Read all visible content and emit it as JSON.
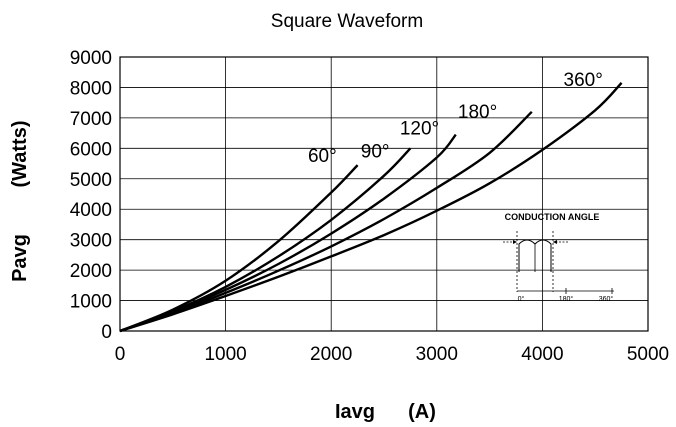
{
  "chart_data": {
    "type": "line",
    "title": "Square Waveform",
    "xlabel": "Iavg",
    "xunit": "(A)",
    "ylabel": "Pavg",
    "yunit": "(Watts)",
    "xlim": [
      0,
      5000
    ],
    "ylim": [
      0,
      9000
    ],
    "xticks": [
      0,
      1000,
      2000,
      3000,
      4000,
      5000
    ],
    "yticks": [
      0,
      1000,
      2000,
      3000,
      4000,
      5000,
      6000,
      7000,
      8000,
      9000
    ],
    "grid": true,
    "series": [
      {
        "name": "60°",
        "label_at": [
          1780,
          5550
        ],
        "x": [
          0,
          500,
          1000,
          1500,
          2000,
          2250
        ],
        "y": [
          0,
          700,
          1650,
          2950,
          4550,
          5450
        ]
      },
      {
        "name": "90°",
        "label_at": [
          2280,
          5700
        ],
        "x": [
          0,
          500,
          1000,
          1500,
          2000,
          2500,
          2750
        ],
        "y": [
          0,
          650,
          1450,
          2450,
          3650,
          5100,
          6000
        ]
      },
      {
        "name": "120°",
        "label_at": [
          2650,
          6450
        ],
        "x": [
          0,
          500,
          1000,
          1500,
          2000,
          2500,
          3000,
          3180
        ],
        "y": [
          0,
          620,
          1350,
          2200,
          3200,
          4350,
          5700,
          6450
        ]
      },
      {
        "name": "180°",
        "label_at": [
          3200,
          7000
        ],
        "x": [
          0,
          500,
          1000,
          1500,
          2000,
          2500,
          3000,
          3500,
          3900
        ],
        "y": [
          0,
          580,
          1250,
          1980,
          2780,
          3680,
          4700,
          5850,
          7200
        ]
      },
      {
        "name": "360°",
        "label_at": [
          4200,
          8050
        ],
        "x": [
          0,
          500,
          1000,
          1500,
          2000,
          2500,
          3000,
          3500,
          4000,
          4500,
          4750
        ],
        "y": [
          0,
          550,
          1150,
          1780,
          2450,
          3150,
          3950,
          4850,
          5950,
          7250,
          8150
        ]
      }
    ],
    "inset": {
      "title": "CONDUCTION ANGLE",
      "ticks": [
        "0°",
        "180°",
        "360°"
      ]
    }
  }
}
